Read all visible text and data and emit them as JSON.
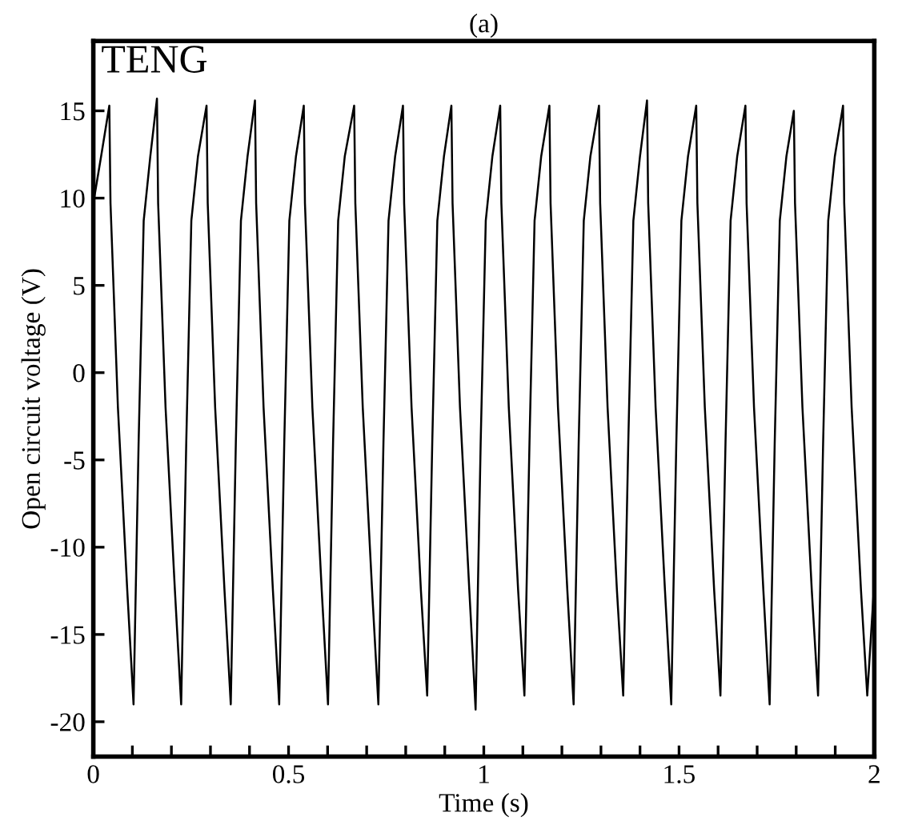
{
  "chart_data": {
    "type": "line",
    "title": "(a)",
    "xlabel": "Time (s)",
    "ylabel": "Open circuit voltage (V)",
    "annotations": [
      "TENG"
    ],
    "xlim": [
      0,
      2
    ],
    "ylim": [
      -22,
      19
    ],
    "xticks": [
      0,
      {
        "value": 0.1,
        "label": null
      },
      {
        "value": 0.2,
        "label": null
      },
      {
        "value": 0.3,
        "label": null
      },
      {
        "value": 0.4,
        "label": null
      },
      0.5,
      {
        "value": 0.6,
        "label": null
      },
      {
        "value": 0.7,
        "label": null
      },
      {
        "value": 0.8,
        "label": null
      },
      {
        "value": 0.9,
        "label": null
      },
      1,
      {
        "value": 1.1,
        "label": null
      },
      {
        "value": 1.2,
        "label": null
      },
      {
        "value": 1.3,
        "label": null
      },
      {
        "value": 1.4,
        "label": null
      },
      1.5,
      {
        "value": 1.6,
        "label": null
      },
      {
        "value": 1.7,
        "label": null
      },
      {
        "value": 1.8,
        "label": null
      },
      {
        "value": 1.9,
        "label": null
      },
      2
    ],
    "yticks": [
      -20,
      -15,
      -10,
      -5,
      0,
      5,
      10,
      15
    ],
    "grid": false,
    "legend": false,
    "marker": "none",
    "line_style": "solid",
    "series": [
      {
        "color": "#000000",
        "x": [
          0,
          0.02,
          0.041,
          0.044,
          0.063,
          0.087,
          0.103,
          0.116,
          0.129,
          0.146,
          0.163,
          0.166,
          0.185,
          0.209,
          0.225,
          0.238,
          0.251,
          0.268,
          0.29,
          0.293,
          0.312,
          0.336,
          0.352,
          0.365,
          0.378,
          0.395,
          0.414,
          0.417,
          0.436,
          0.46,
          0.476,
          0.489,
          0.502,
          0.519,
          0.539,
          0.542,
          0.561,
          0.585,
          0.601,
          0.614,
          0.627,
          0.644,
          0.668,
          0.671,
          0.69,
          0.714,
          0.73,
          0.743,
          0.756,
          0.773,
          0.793,
          0.796,
          0.815,
          0.839,
          0.855,
          0.868,
          0.881,
          0.898,
          0.917,
          0.92,
          0.939,
          0.963,
          0.979,
          0.992,
          1.005,
          1.022,
          1.042,
          1.045,
          1.064,
          1.088,
          1.104,
          1.117,
          1.13,
          1.147,
          1.168,
          1.171,
          1.19,
          1.214,
          1.23,
          1.243,
          1.256,
          1.273,
          1.295,
          1.298,
          1.317,
          1.341,
          1.357,
          1.37,
          1.383,
          1.4,
          1.418,
          1.421,
          1.44,
          1.464,
          1.48,
          1.493,
          1.506,
          1.523,
          1.544,
          1.547,
          1.566,
          1.59,
          1.606,
          1.619,
          1.632,
          1.649,
          1.67,
          1.673,
          1.692,
          1.716,
          1.732,
          1.745,
          1.758,
          1.775,
          1.794,
          1.797,
          1.816,
          1.84,
          1.856,
          1.869,
          1.882,
          1.899,
          1.92,
          1.923,
          1.942,
          1.966,
          1.982,
          2.0
        ],
        "values": [
          9.7,
          12.4,
          15.3,
          9.7,
          -2,
          -12.5,
          -19,
          -4,
          8.7,
          12.4,
          15.7,
          9.7,
          -2,
          -12.5,
          -19,
          -4,
          8.7,
          12.4,
          15.3,
          9.7,
          -2,
          -12.5,
          -19,
          -4,
          8.7,
          12.4,
          15.6,
          9.7,
          -2,
          -12.5,
          -19,
          -4,
          8.7,
          12.4,
          15.3,
          9.7,
          -2,
          -12.5,
          -19,
          -4,
          8.7,
          12.4,
          15.3,
          9.7,
          -2,
          -12.5,
          -19,
          -4,
          8.7,
          12.4,
          15.3,
          9.7,
          -2,
          -12.5,
          -18.5,
          -4,
          8.7,
          12.4,
          15.3,
          9.7,
          -2,
          -12.5,
          -19.3,
          -4,
          8.7,
          12.4,
          15.3,
          9.7,
          -2,
          -12.5,
          -18.5,
          -4,
          8.7,
          12.4,
          15.3,
          9.7,
          -2,
          -12.5,
          -19,
          -4,
          8.7,
          12.4,
          15.3,
          9.7,
          -2,
          -12.5,
          -18.5,
          -4,
          8.7,
          12.4,
          15.6,
          9.7,
          -2,
          -12.5,
          -19,
          -4,
          8.7,
          12.4,
          15.3,
          9.7,
          -2,
          -12.5,
          -18.5,
          -4,
          8.7,
          12.4,
          15.3,
          9.7,
          -2,
          -12.5,
          -19,
          -4,
          8.7,
          12.4,
          15,
          9.7,
          -2,
          -12.5,
          -18.5,
          -4,
          8.7,
          12.4,
          15.3,
          9.7,
          -2,
          -12.5,
          -18.5,
          -12
        ]
      }
    ]
  }
}
